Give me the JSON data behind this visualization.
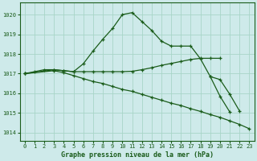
{
  "background_color": "#ceeaea",
  "grid_color": "#a8d5c8",
  "line_color": "#1a5c1a",
  "xlabel": "Graphe pression niveau de la mer (hPa)",
  "xlim": [
    -0.5,
    23.5
  ],
  "ylim": [
    1013.6,
    1020.6
  ],
  "yticks": [
    1014,
    1015,
    1016,
    1017,
    1018,
    1019,
    1020
  ],
  "xticks": [
    0,
    1,
    2,
    3,
    4,
    5,
    6,
    7,
    8,
    9,
    10,
    11,
    12,
    13,
    14,
    15,
    16,
    17,
    18,
    19,
    20,
    21,
    22,
    23
  ],
  "line1_x": [
    0,
    1,
    2,
    3,
    4,
    5,
    6,
    7,
    8,
    9,
    10,
    11,
    12,
    13,
    14,
    15,
    16,
    17,
    18,
    19,
    20,
    21
  ],
  "line1_y": [
    1017.0,
    1017.1,
    1017.2,
    1017.2,
    1017.15,
    1017.1,
    1017.5,
    1018.15,
    1018.75,
    1019.3,
    1020.0,
    1020.1,
    1019.65,
    1019.2,
    1018.65,
    1018.4,
    1018.4,
    1018.4,
    1017.75,
    1016.85,
    1015.85,
    1015.05
  ],
  "line2_x": [
    0,
    3,
    4,
    5,
    6,
    7,
    8,
    9,
    10,
    11,
    12,
    13,
    14,
    15,
    16,
    17,
    18,
    19,
    20
  ],
  "line2_y": [
    1017.0,
    1017.2,
    1017.15,
    1017.1,
    1017.1,
    1017.1,
    1017.1,
    1017.1,
    1017.1,
    1017.12,
    1017.2,
    1017.3,
    1017.42,
    1017.52,
    1017.62,
    1017.72,
    1017.78,
    1017.78,
    1017.78
  ],
  "line3_x": [
    0,
    3,
    4,
    5,
    6,
    7,
    8,
    9,
    10,
    11,
    12,
    13,
    14,
    15,
    16,
    17,
    18,
    19,
    20,
    21,
    22,
    23
  ],
  "line3_y": [
    1017.0,
    1017.15,
    1017.05,
    1016.9,
    1016.75,
    1016.6,
    1016.5,
    1016.35,
    1016.2,
    1016.1,
    1015.95,
    1015.8,
    1015.65,
    1015.5,
    1015.38,
    1015.22,
    1015.08,
    1014.92,
    1014.78,
    1014.6,
    1014.42,
    1014.2
  ],
  "line4_x": [
    19,
    20,
    21,
    22,
    23
  ],
  "line4_y": [
    1016.85,
    1016.75,
    1016.0,
    1015.15,
    null
  ]
}
